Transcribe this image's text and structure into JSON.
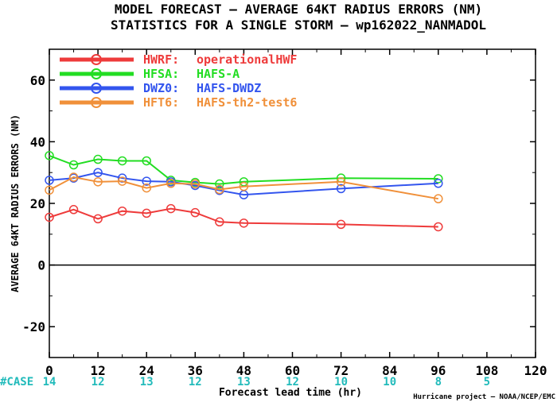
{
  "chart_data": {
    "type": "line",
    "title": "MODEL FORECAST – AVERAGE 64KT RADIUS ERRORS (NM)",
    "subtitle": "STATISTICS FOR A SINGLE STORM – wp162022_NANMADOL",
    "xlabel": "Forecast lead time (hr)",
    "ylabel": "AVERAGE 64KT RADIUS ERRORS (NM)",
    "xlim": [
      0,
      120
    ],
    "ylim": [
      -30,
      70
    ],
    "xticks": [
      0,
      12,
      24,
      36,
      48,
      60,
      72,
      84,
      96,
      108,
      120
    ],
    "yticks": [
      -20,
      0,
      20,
      40,
      60
    ],
    "grid": false,
    "legend_placement": "top-left",
    "series": [
      {
        "name": "HWRF:",
        "desc": "operationalHWF",
        "color": "#ee3b3b",
        "x": [
          0,
          6,
          12,
          18,
          24,
          30,
          36,
          42,
          48,
          72,
          96
        ],
        "y": [
          15.5,
          18,
          15,
          17.5,
          16.8,
          18.3,
          17,
          14,
          13.6,
          13.2,
          12.4
        ]
      },
      {
        "name": "HFSA:",
        "desc": "HAFS-A",
        "color": "#22dd22",
        "x": [
          0,
          6,
          12,
          18,
          24,
          30,
          36,
          42,
          48,
          72,
          96
        ],
        "y": [
          35.5,
          32.5,
          34.3,
          33.8,
          33.8,
          27.5,
          26.8,
          26.3,
          27,
          28.2,
          28
        ]
      },
      {
        "name": "DWZ0:",
        "desc": "HAFS-DWDZ",
        "color": "#3355ee",
        "x": [
          0,
          6,
          12,
          18,
          24,
          30,
          36,
          42,
          48,
          72,
          96
        ],
        "y": [
          27.5,
          28.2,
          30,
          28.2,
          27.2,
          27,
          25.8,
          24.2,
          22.8,
          24.8,
          26.5
        ]
      },
      {
        "name": "HFT6:",
        "desc": "HAFS-th2-test6",
        "color": "#f0903a",
        "x": [
          0,
          6,
          12,
          18,
          24,
          30,
          36,
          42,
          48,
          72,
          96
        ],
        "y": [
          24.3,
          28.5,
          27,
          27.2,
          25,
          26.5,
          26.3,
          24.5,
          25.5,
          27,
          21.5
        ]
      }
    ],
    "case_label": "#CASE",
    "case_color": "#22bbbb",
    "cases": [
      {
        "x": 0,
        "n": "14"
      },
      {
        "x": 12,
        "n": "12"
      },
      {
        "x": 24,
        "n": "13"
      },
      {
        "x": 36,
        "n": "12"
      },
      {
        "x": 48,
        "n": "13"
      },
      {
        "x": 60,
        "n": "12"
      },
      {
        "x": 72,
        "n": "10"
      },
      {
        "x": 84,
        "n": "10"
      },
      {
        "x": 96,
        "n": "8"
      },
      {
        "x": 108,
        "n": "5"
      }
    ],
    "credit": "Hurricane project – NOAA/NCEP/EMC"
  }
}
